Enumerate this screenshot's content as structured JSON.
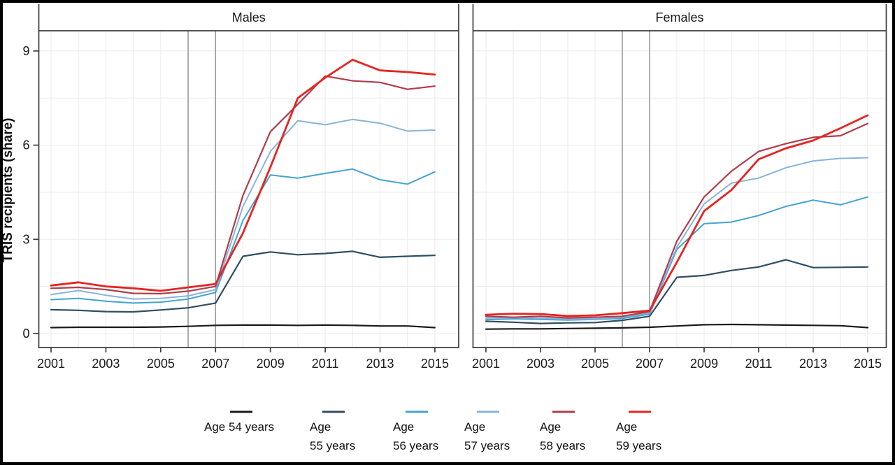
{
  "figure": {
    "y_axis_title": "TRIS recipients (share)"
  },
  "chart_data": {
    "type": "line",
    "x": [
      2001,
      2002,
      2003,
      2004,
      2005,
      2006,
      2007,
      2008,
      2009,
      2010,
      2011,
      2012,
      2013,
      2014,
      2015
    ],
    "x_ticks": [
      2001,
      2003,
      2005,
      2007,
      2009,
      2011,
      2013,
      2015
    ],
    "y_ticks": [
      0,
      3,
      6,
      9
    ],
    "y_minor_grid": [
      1.5,
      4.5,
      7.5
    ],
    "ylim": [
      0,
      9.7
    ],
    "ylabel": "TRIS recipients (share)",
    "reference_lines_x": [
      2006,
      2007
    ],
    "grid": true,
    "legend_position": "bottom",
    "panels": [
      {
        "title": "Males",
        "series": [
          {
            "name": "Age 54 years",
            "color": "#1a1a1a",
            "values": [
              0.19,
              0.2,
              0.2,
              0.2,
              0.21,
              0.23,
              0.26,
              0.27,
              0.27,
              0.26,
              0.27,
              0.26,
              0.24,
              0.24,
              0.19
            ]
          },
          {
            "name": "Age 55 years",
            "color": "#2f4e63",
            "values": [
              0.76,
              0.74,
              0.7,
              0.69,
              0.75,
              0.82,
              0.97,
              2.46,
              2.6,
              2.51,
              2.55,
              2.62,
              2.43,
              2.46,
              2.49
            ]
          },
          {
            "name": "Age 56 years",
            "color": "#45a2d2",
            "values": [
              1.08,
              1.12,
              1.03,
              0.97,
              1.0,
              1.1,
              1.31,
              3.6,
              5.05,
              4.95,
              5.1,
              5.24,
              4.9,
              4.76,
              5.15
            ]
          },
          {
            "name": "Age 57 years",
            "color": "#88b4da",
            "values": [
              1.24,
              1.37,
              1.22,
              1.1,
              1.12,
              1.2,
              1.4,
              4.05,
              5.8,
              6.78,
              6.65,
              6.82,
              6.7,
              6.45,
              6.48
            ]
          },
          {
            "name": "Age 58 years",
            "color": "#b03d4d",
            "values": [
              1.44,
              1.47,
              1.4,
              1.28,
              1.27,
              1.35,
              1.5,
              4.4,
              6.43,
              7.3,
              8.2,
              8.05,
              8.0,
              7.78,
              7.88
            ]
          },
          {
            "name": "Age 59 years",
            "color": "#e62420",
            "values": [
              1.53,
              1.63,
              1.5,
              1.44,
              1.36,
              1.47,
              1.58,
              3.2,
              5.3,
              7.5,
              8.15,
              8.72,
              8.38,
              8.33,
              8.25
            ]
          }
        ]
      },
      {
        "title": "Females",
        "series": [
          {
            "name": "Age 54 years",
            "color": "#1a1a1a",
            "values": [
              0.14,
              0.15,
              0.15,
              0.16,
              0.17,
              0.18,
              0.2,
              0.24,
              0.28,
              0.29,
              0.28,
              0.27,
              0.26,
              0.25,
              0.19
            ]
          },
          {
            "name": "Age 55 years",
            "color": "#2f4e63",
            "values": [
              0.39,
              0.36,
              0.32,
              0.34,
              0.35,
              0.42,
              0.55,
              1.79,
              1.85,
              2.01,
              2.12,
              2.35,
              2.1,
              2.11,
              2.12
            ]
          },
          {
            "name": "Age 56 years",
            "color": "#45a2d2",
            "values": [
              0.44,
              0.47,
              0.45,
              0.43,
              0.45,
              0.48,
              0.62,
              2.68,
              3.5,
              3.55,
              3.76,
              4.05,
              4.25,
              4.1,
              4.35
            ]
          },
          {
            "name": "Age 57 years",
            "color": "#88b4da",
            "values": [
              0.49,
              0.52,
              0.49,
              0.46,
              0.47,
              0.52,
              0.66,
              2.75,
              4.13,
              4.79,
              4.95,
              5.28,
              5.5,
              5.58,
              5.6
            ]
          },
          {
            "name": "Age 58 years",
            "color": "#b03d4d",
            "values": [
              0.55,
              0.52,
              0.55,
              0.5,
              0.52,
              0.55,
              0.7,
              2.94,
              4.35,
              5.17,
              5.8,
              6.05,
              6.25,
              6.3,
              6.69
            ]
          },
          {
            "name": "Age 59 years",
            "color": "#e62420",
            "values": [
              0.6,
              0.63,
              0.62,
              0.56,
              0.58,
              0.65,
              0.73,
              2.27,
              3.9,
              4.57,
              5.55,
              5.9,
              6.15,
              6.54,
              6.95
            ]
          }
        ]
      }
    ]
  },
  "legend": {
    "entries": [
      {
        "line1": "Age 54 years",
        "line2": "",
        "color": "#1a1a1a"
      },
      {
        "line1": "Age",
        "line2": "55 years",
        "color": "#2f4e63"
      },
      {
        "line1": "Age",
        "line2": "56 years",
        "color": "#45a2d2"
      },
      {
        "line1": "Age",
        "line2": "57 years",
        "color": "#88b4da"
      },
      {
        "line1": "Age",
        "line2": "58 years",
        "color": "#b03d4d"
      },
      {
        "line1": "Age",
        "line2": "59 years",
        "color": "#e62420"
      }
    ]
  }
}
